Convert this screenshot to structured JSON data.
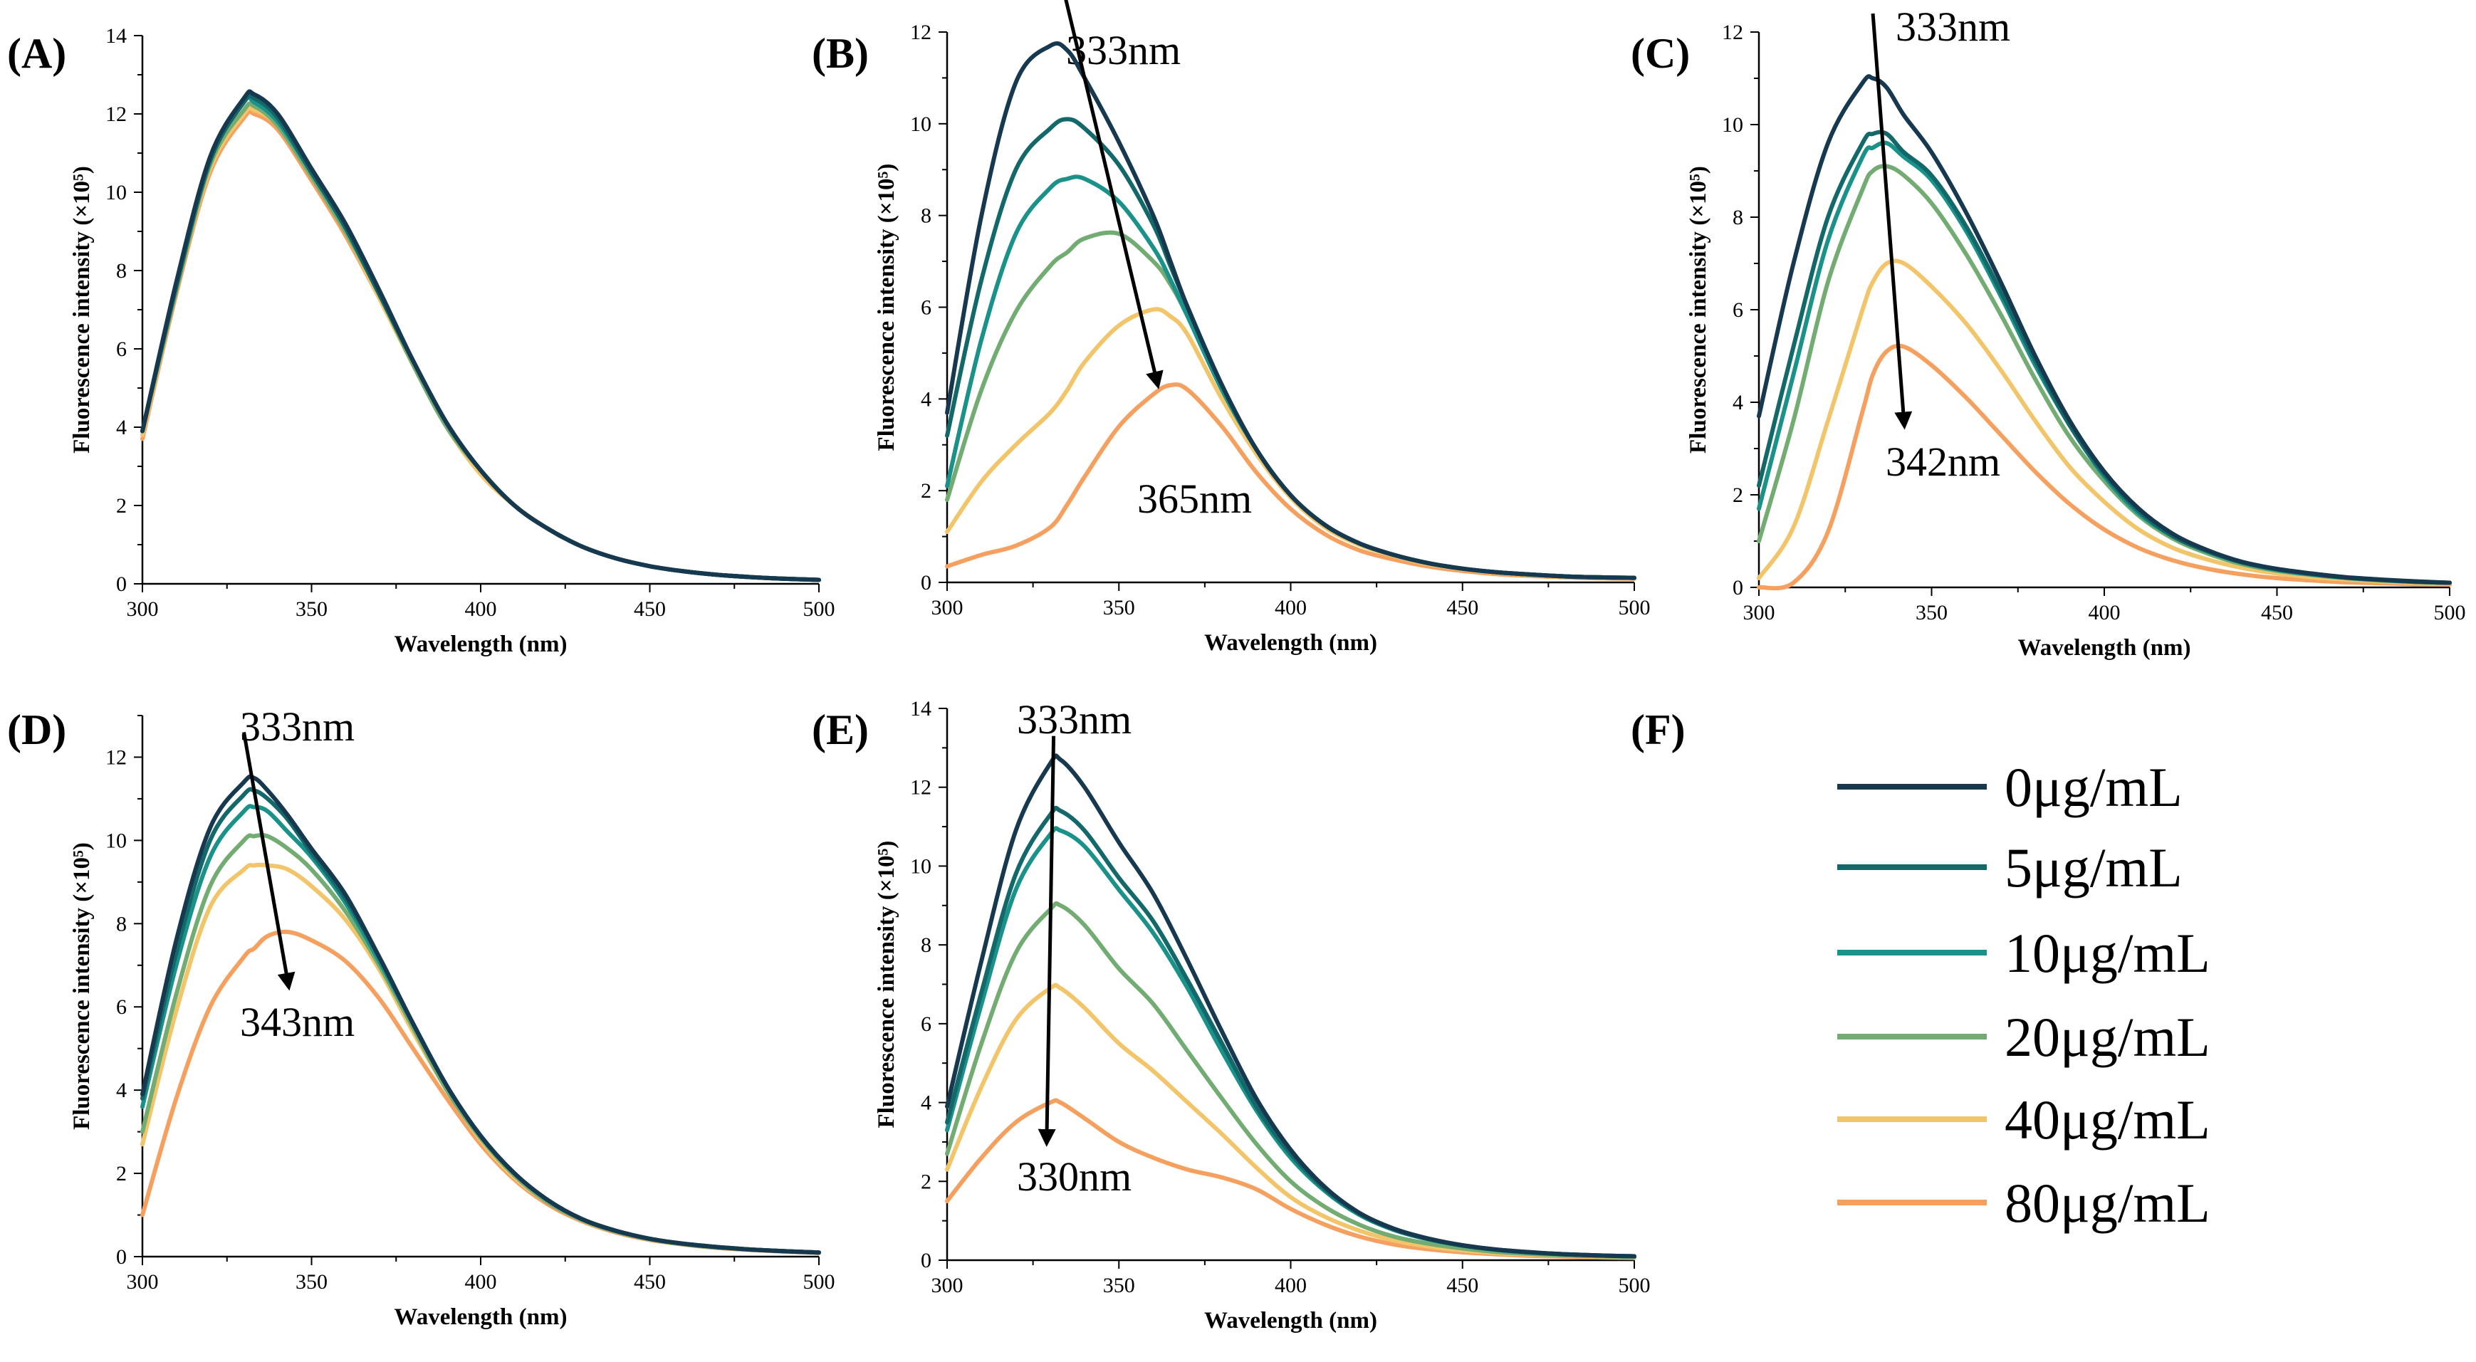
{
  "legend": {
    "label": "(F)",
    "entries": [
      {
        "name": "0μg/mL",
        "color": "#17394f"
      },
      {
        "name": "5μg/mL",
        "color": "#13686a"
      },
      {
        "name": "10μg/mL",
        "color": "#1a9189"
      },
      {
        "name": "20μg/mL",
        "color": "#73ac73"
      },
      {
        "name": "40μg/mL",
        "color": "#f2c56a"
      },
      {
        "name": "80μg/mL",
        "color": "#f5a05f"
      }
    ]
  },
  "chart_data": [
    {
      "type": "line",
      "label": "(A)",
      "xlabel": "Wavelength (nm)",
      "ylabel": "Fluorescence intensity (×10⁵)",
      "xlim": [
        300,
        500
      ],
      "ylim": [
        0,
        14
      ],
      "xticks": [
        300,
        350,
        400,
        450,
        500
      ],
      "yticks": [
        0,
        2,
        4,
        6,
        8,
        10,
        12,
        14
      ],
      "x": [
        300,
        310,
        320,
        330,
        333,
        340,
        350,
        360,
        370,
        380,
        390,
        400,
        410,
        420,
        430,
        440,
        450,
        460,
        470,
        480,
        490,
        500
      ],
      "series": [
        {
          "name": "0μg/mL",
          "values": [
            3.9,
            7.7,
            10.9,
            12.4,
            12.5,
            12.0,
            10.6,
            9.2,
            7.5,
            5.7,
            4.1,
            2.9,
            2.0,
            1.4,
            0.95,
            0.65,
            0.45,
            0.32,
            0.23,
            0.17,
            0.13,
            0.1
          ]
        },
        {
          "name": "5μg/mL",
          "values": [
            3.9,
            7.6,
            10.8,
            12.3,
            12.4,
            11.9,
            10.5,
            9.1,
            7.4,
            5.7,
            4.1,
            2.9,
            2.0,
            1.4,
            0.95,
            0.65,
            0.45,
            0.32,
            0.23,
            0.17,
            0.13,
            0.1
          ]
        },
        {
          "name": "10μg/mL",
          "values": [
            3.9,
            7.6,
            10.8,
            12.3,
            12.3,
            11.8,
            10.5,
            9.1,
            7.4,
            5.7,
            4.1,
            2.9,
            2.0,
            1.4,
            0.95,
            0.65,
            0.45,
            0.32,
            0.23,
            0.17,
            0.13,
            0.1
          ]
        },
        {
          "name": "20μg/mL",
          "values": [
            3.9,
            7.5,
            10.7,
            12.1,
            12.2,
            11.7,
            10.4,
            9.0,
            7.4,
            5.6,
            4.0,
            2.9,
            2.0,
            1.4,
            0.95,
            0.65,
            0.45,
            0.32,
            0.23,
            0.17,
            0.13,
            0.1
          ]
        },
        {
          "name": "40μg/mL",
          "values": [
            3.8,
            7.5,
            10.6,
            12.0,
            12.1,
            11.7,
            10.4,
            9.0,
            7.3,
            5.6,
            4.0,
            2.8,
            2.0,
            1.4,
            0.95,
            0.65,
            0.45,
            0.32,
            0.23,
            0.17,
            0.13,
            0.1
          ]
        },
        {
          "name": "80μg/mL",
          "values": [
            3.7,
            7.4,
            10.5,
            11.9,
            12.0,
            11.6,
            10.3,
            8.9,
            7.3,
            5.6,
            4.0,
            2.8,
            2.0,
            1.4,
            0.95,
            0.65,
            0.45,
            0.32,
            0.23,
            0.17,
            0.13,
            0.1
          ]
        }
      ],
      "annotations": []
    },
    {
      "type": "line",
      "label": "(B)",
      "xlabel": "Wavelength (nm)",
      "ylabel": "Fluorescence intensity (×10⁵)",
      "xlim": [
        300,
        500
      ],
      "ylim": [
        0,
        12
      ],
      "xticks": [
        300,
        350,
        400,
        450,
        500
      ],
      "yticks": [
        0,
        2,
        4,
        6,
        8,
        10,
        12
      ],
      "x": [
        300,
        310,
        320,
        330,
        335,
        340,
        350,
        360,
        365,
        370,
        380,
        390,
        400,
        410,
        420,
        430,
        440,
        450,
        460,
        470,
        480,
        490,
        500
      ],
      "series": [
        {
          "name": "0μg/mL",
          "values": [
            3.7,
            8.0,
            10.9,
            11.7,
            11.6,
            11.0,
            9.6,
            8.0,
            7.0,
            6.0,
            4.3,
            2.9,
            1.9,
            1.25,
            0.85,
            0.6,
            0.42,
            0.3,
            0.22,
            0.17,
            0.13,
            0.11,
            0.1
          ]
        },
        {
          "name": "5μg/mL",
          "values": [
            3.2,
            6.6,
            9.0,
            9.9,
            10.1,
            9.9,
            9.1,
            7.8,
            6.9,
            6.0,
            4.3,
            2.9,
            1.9,
            1.25,
            0.85,
            0.6,
            0.42,
            0.3,
            0.22,
            0.17,
            0.13,
            0.11,
            0.1
          ]
        },
        {
          "name": "10μg/mL",
          "values": [
            2.1,
            5.3,
            7.6,
            8.6,
            8.8,
            8.8,
            8.3,
            7.3,
            6.6,
            5.8,
            4.2,
            2.9,
            1.9,
            1.25,
            0.85,
            0.6,
            0.42,
            0.3,
            0.22,
            0.17,
            0.13,
            0.11,
            0.1
          ]
        },
        {
          "name": "20μg/mL",
          "values": [
            1.8,
            4.2,
            5.9,
            6.9,
            7.2,
            7.5,
            7.6,
            7.0,
            6.5,
            5.8,
            4.2,
            2.9,
            1.9,
            1.25,
            0.85,
            0.6,
            0.42,
            0.3,
            0.22,
            0.17,
            0.13,
            0.11,
            0.1
          ]
        },
        {
          "name": "40μg/mL",
          "values": [
            1.1,
            2.2,
            3.0,
            3.7,
            4.2,
            4.8,
            5.6,
            5.95,
            5.8,
            5.4,
            4.0,
            2.8,
            1.85,
            1.2,
            0.82,
            0.58,
            0.4,
            0.29,
            0.21,
            0.16,
            0.12,
            0.1,
            0.09
          ]
        },
        {
          "name": "80μg/mL",
          "values": [
            0.35,
            0.6,
            0.8,
            1.2,
            1.7,
            2.3,
            3.4,
            4.1,
            4.3,
            4.2,
            3.4,
            2.4,
            1.6,
            1.05,
            0.7,
            0.5,
            0.35,
            0.25,
            0.18,
            0.14,
            0.11,
            0.09,
            0.08
          ]
        }
      ],
      "annotations": [
        {
          "text": "333nm",
          "role": "start"
        },
        {
          "text": "365nm",
          "role": "end"
        }
      ],
      "arrow": {
        "from": [
          333,
          13.2
        ],
        "to": [
          361,
          4.4
        ]
      }
    },
    {
      "type": "line",
      "label": "(C)",
      "xlabel": "Wavelength (nm)",
      "ylabel": "Fluorescence intensity (×10⁵)",
      "xlim": [
        300,
        500
      ],
      "ylim": [
        0,
        12
      ],
      "xticks": [
        300,
        350,
        400,
        450,
        500
      ],
      "yticks": [
        0,
        2,
        4,
        6,
        8,
        10,
        12
      ],
      "x": [
        300,
        310,
        320,
        330,
        333,
        337,
        342,
        350,
        360,
        370,
        380,
        390,
        400,
        410,
        420,
        430,
        440,
        450,
        460,
        470,
        480,
        490,
        500
      ],
      "series": [
        {
          "name": "0μg/mL",
          "values": [
            3.7,
            7.0,
            9.6,
            10.9,
            11.0,
            10.8,
            10.2,
            9.4,
            8.1,
            6.6,
            5.0,
            3.6,
            2.5,
            1.7,
            1.15,
            0.8,
            0.55,
            0.4,
            0.3,
            0.22,
            0.17,
            0.13,
            0.1
          ]
        },
        {
          "name": "5μg/mL",
          "values": [
            2.2,
            5.2,
            8.0,
            9.6,
            9.8,
            9.8,
            9.4,
            8.9,
            7.8,
            6.4,
            4.9,
            3.5,
            2.45,
            1.65,
            1.1,
            0.78,
            0.54,
            0.39,
            0.29,
            0.21,
            0.16,
            0.12,
            0.1
          ]
        },
        {
          "name": "10μg/mL",
          "values": [
            1.7,
            4.6,
            7.5,
            9.3,
            9.5,
            9.6,
            9.3,
            8.8,
            7.7,
            6.3,
            4.8,
            3.5,
            2.4,
            1.6,
            1.1,
            0.77,
            0.53,
            0.38,
            0.28,
            0.21,
            0.16,
            0.12,
            0.1
          ]
        },
        {
          "name": "20μg/mL",
          "values": [
            1.0,
            3.6,
            6.6,
            8.6,
            9.0,
            9.1,
            8.9,
            8.3,
            7.2,
            5.9,
            4.5,
            3.25,
            2.3,
            1.55,
            1.05,
            0.73,
            0.5,
            0.36,
            0.27,
            0.2,
            0.15,
            0.12,
            0.1
          ]
        },
        {
          "name": "40μg/mL",
          "values": [
            0.2,
            1.3,
            3.6,
            6.0,
            6.6,
            7.0,
            7.0,
            6.5,
            5.7,
            4.7,
            3.6,
            2.6,
            1.85,
            1.25,
            0.85,
            0.6,
            0.42,
            0.3,
            0.22,
            0.17,
            0.13,
            0.1,
            0.08
          ]
        },
        {
          "name": "80μg/mL",
          "values": [
            0.0,
            0.1,
            1.2,
            3.8,
            4.6,
            5.1,
            5.2,
            4.8,
            4.1,
            3.3,
            2.5,
            1.8,
            1.25,
            0.85,
            0.58,
            0.4,
            0.28,
            0.2,
            0.15,
            0.11,
            0.09,
            0.07,
            0.06
          ]
        }
      ],
      "annotations": [
        {
          "text": "333nm",
          "role": "start"
        },
        {
          "text": "342nm",
          "role": "end"
        }
      ],
      "arrow": {
        "from": [
          333,
          12.4
        ],
        "to": [
          342,
          3.6
        ]
      }
    },
    {
      "type": "line",
      "label": "(D)",
      "xlabel": "Wavelength (nm)",
      "ylabel": "Fluorescence intensity (×10⁵)",
      "xlim": [
        300,
        500
      ],
      "ylim": [
        0,
        13
      ],
      "xticks": [
        300,
        350,
        400,
        450,
        500
      ],
      "yticks": [
        0,
        2,
        4,
        6,
        8,
        10,
        12
      ],
      "x": [
        300,
        310,
        320,
        330,
        333,
        337,
        343,
        350,
        360,
        370,
        380,
        390,
        400,
        410,
        420,
        430,
        440,
        450,
        460,
        470,
        480,
        490,
        500
      ],
      "series": [
        {
          "name": "0μg/mL",
          "values": [
            3.9,
            7.6,
            10.3,
            11.4,
            11.5,
            11.2,
            10.6,
            9.8,
            8.7,
            7.2,
            5.6,
            4.1,
            2.9,
            2.0,
            1.35,
            0.9,
            0.62,
            0.43,
            0.31,
            0.23,
            0.17,
            0.13,
            0.1
          ]
        },
        {
          "name": "5μg/mL",
          "values": [
            3.8,
            7.3,
            10.0,
            11.1,
            11.2,
            11.0,
            10.5,
            9.7,
            8.6,
            7.2,
            5.6,
            4.1,
            2.9,
            2.0,
            1.35,
            0.9,
            0.62,
            0.43,
            0.31,
            0.23,
            0.17,
            0.13,
            0.1
          ]
        },
        {
          "name": "10μg/mL",
          "values": [
            3.6,
            7.0,
            9.6,
            10.7,
            10.8,
            10.7,
            10.2,
            9.6,
            8.5,
            7.1,
            5.6,
            4.1,
            2.9,
            2.0,
            1.35,
            0.9,
            0.62,
            0.43,
            0.31,
            0.23,
            0.17,
            0.13,
            0.1
          ]
        },
        {
          "name": "20μg/mL",
          "values": [
            3.0,
            6.3,
            8.9,
            10.0,
            10.1,
            10.1,
            9.8,
            9.3,
            8.3,
            7.0,
            5.5,
            4.0,
            2.85,
            1.95,
            1.3,
            0.88,
            0.6,
            0.42,
            0.3,
            0.22,
            0.17,
            0.13,
            0.1
          ]
        },
        {
          "name": "40μg/mL",
          "values": [
            2.7,
            5.9,
            8.4,
            9.3,
            9.4,
            9.4,
            9.3,
            8.9,
            8.1,
            6.9,
            5.4,
            4.0,
            2.8,
            1.9,
            1.3,
            0.87,
            0.6,
            0.42,
            0.3,
            0.22,
            0.17,
            0.13,
            0.1
          ]
        },
        {
          "name": "80μg/mL",
          "values": [
            1.0,
            3.8,
            6.0,
            7.2,
            7.4,
            7.7,
            7.8,
            7.6,
            7.1,
            6.2,
            5.0,
            3.8,
            2.7,
            1.85,
            1.25,
            0.85,
            0.58,
            0.4,
            0.29,
            0.21,
            0.16,
            0.12,
            0.09
          ]
        }
      ],
      "annotations": [
        {
          "text": "333nm",
          "role": "start"
        },
        {
          "text": "343nm",
          "role": "end"
        }
      ],
      "arrow": {
        "from": [
          330,
          12.6
        ],
        "to": [
          343,
          6.6
        ]
      }
    },
    {
      "type": "line",
      "label": "(E)",
      "xlabel": "Wavelength (nm)",
      "ylabel": "Fluorescence intensity (×10⁵)",
      "xlim": [
        300,
        500
      ],
      "ylim": [
        0,
        14
      ],
      "xticks": [
        300,
        350,
        400,
        450,
        500
      ],
      "yticks": [
        0,
        2,
        4,
        6,
        8,
        10,
        12,
        14
      ],
      "x": [
        300,
        310,
        320,
        330,
        333,
        340,
        350,
        360,
        370,
        380,
        390,
        400,
        410,
        420,
        430,
        440,
        450,
        460,
        470,
        480,
        490,
        500
      ],
      "series": [
        {
          "name": "0μg/mL",
          "values": [
            3.9,
            7.6,
            10.9,
            12.6,
            12.7,
            12.0,
            10.6,
            9.3,
            7.6,
            5.8,
            4.1,
            2.8,
            1.85,
            1.2,
            0.8,
            0.55,
            0.38,
            0.27,
            0.2,
            0.15,
            0.12,
            0.1
          ]
        },
        {
          "name": "5μg/mL",
          "values": [
            3.5,
            6.8,
            9.8,
            11.3,
            11.4,
            10.9,
            9.7,
            8.6,
            7.1,
            5.5,
            3.9,
            2.7,
            1.8,
            1.18,
            0.78,
            0.54,
            0.37,
            0.27,
            0.2,
            0.15,
            0.12,
            0.1
          ]
        },
        {
          "name": "10μg/mL",
          "values": [
            3.3,
            6.5,
            9.4,
            10.8,
            10.9,
            10.5,
            9.4,
            8.3,
            6.9,
            5.3,
            3.8,
            2.6,
            1.75,
            1.15,
            0.77,
            0.53,
            0.37,
            0.26,
            0.19,
            0.15,
            0.12,
            0.1
          ]
        },
        {
          "name": "20μg/mL",
          "values": [
            2.7,
            5.5,
            7.8,
            8.9,
            9.0,
            8.5,
            7.4,
            6.5,
            5.3,
            4.1,
            2.95,
            2.0,
            1.35,
            0.9,
            0.6,
            0.42,
            0.3,
            0.21,
            0.16,
            0.12,
            0.1,
            0.08
          ]
        },
        {
          "name": "40μg/mL",
          "values": [
            2.3,
            4.4,
            6.1,
            6.9,
            6.9,
            6.4,
            5.5,
            4.8,
            4.0,
            3.2,
            2.35,
            1.6,
            1.1,
            0.75,
            0.5,
            0.35,
            0.25,
            0.18,
            0.14,
            0.11,
            0.09,
            0.07
          ]
        },
        {
          "name": "80μg/mL",
          "values": [
            1.5,
            2.6,
            3.5,
            4.0,
            4.0,
            3.6,
            3.0,
            2.6,
            2.3,
            2.1,
            1.8,
            1.3,
            0.9,
            0.6,
            0.4,
            0.28,
            0.2,
            0.15,
            0.11,
            0.09,
            0.07,
            0.06
          ]
        }
      ],
      "annotations": [
        {
          "text": "333nm",
          "role": "start"
        },
        {
          "text": "330nm",
          "role": "end"
        }
      ],
      "arrow": {
        "from": [
          331,
          13.3
        ],
        "to": [
          329,
          3.1
        ]
      }
    }
  ]
}
